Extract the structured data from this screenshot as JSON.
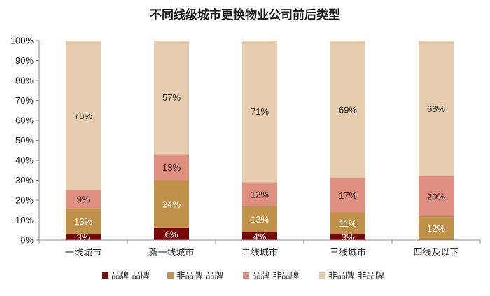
{
  "chart_data": {
    "type": "bar",
    "stacked": true,
    "title": "不同线级城市更换物业公司前后类型",
    "categories": [
      "一线城市",
      "新一线城市",
      "二线城市",
      "三线城市",
      "四线及以下"
    ],
    "series": [
      {
        "name": "品牌-品牌",
        "color": "#7a0a0a",
        "label_color": "#ffffff",
        "values": [
          3,
          6,
          4,
          3,
          0
        ],
        "labels": [
          "3%",
          "6%",
          "4%",
          "3%",
          ""
        ]
      },
      {
        "name": "非品牌-品牌",
        "color": "#c0914a",
        "label_color": "#ffffff",
        "values": [
          13,
          24,
          13,
          11,
          12
        ],
        "labels": [
          "13%",
          "24%",
          "13%",
          "11%",
          "12%"
        ]
      },
      {
        "name": "品牌-非品牌",
        "color": "#de8f80",
        "label_color": "#222222",
        "values": [
          9,
          13,
          12,
          17,
          20
        ],
        "labels": [
          "9%",
          "13%",
          "12%",
          "17%",
          "20%"
        ]
      },
      {
        "name": "非品牌-非品牌",
        "color": "#e6cdb0",
        "label_color": "#222222",
        "values": [
          75,
          57,
          71,
          69,
          68
        ],
        "labels": [
          "75%",
          "57%",
          "71%",
          "69%",
          "68%"
        ]
      }
    ],
    "ylim": [
      0,
      100
    ],
    "yticks": [
      "0%",
      "10%",
      "20%",
      "30%",
      "40%",
      "50%",
      "60%",
      "70%",
      "80%",
      "90%",
      "100%"
    ],
    "legend_position": "bottom",
    "grid": false
  }
}
